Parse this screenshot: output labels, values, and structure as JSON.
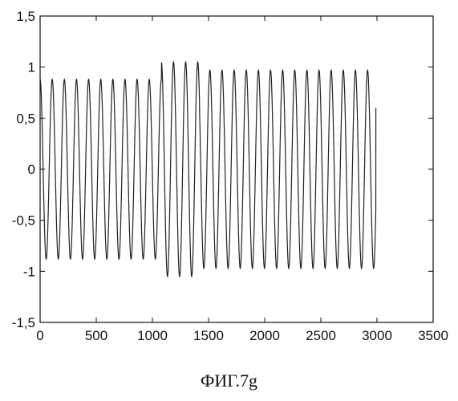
{
  "caption": "ФИГ.7g",
  "chart_data": {
    "type": "line",
    "title": "",
    "xlabel": "",
    "ylabel": "",
    "xlim": [
      0,
      3500
    ],
    "ylim": [
      -1.5,
      1.5
    ],
    "x_ticks": [
      0,
      500,
      1000,
      1500,
      2000,
      2500,
      3000,
      3500
    ],
    "x_tick_labels": [
      "0",
      "500",
      "1000",
      "1500",
      "2000",
      "2500",
      "3000",
      "3500"
    ],
    "y_ticks": [
      1.5,
      1,
      0.5,
      0,
      -0.5,
      -1,
      -1.5
    ],
    "y_tick_labels": [
      "1,5",
      "1",
      "0,5",
      "0",
      "-0,5",
      "-1",
      "-1,5"
    ],
    "grid": false,
    "line_color": "#222222",
    "series": [
      {
        "segments": [
          {
            "x_start": 0,
            "x_end": 1080,
            "amplitude": 0.88,
            "period": 108,
            "phase": 1.57
          },
          {
            "x_start": 1080,
            "x_end": 1420,
            "amplitude": 1.05,
            "period": 108,
            "phase": 1.57
          },
          {
            "x_start": 1420,
            "x_end": 2990,
            "amplitude": 0.97,
            "period": 108,
            "phase": 1.57
          }
        ],
        "end_value": 0.6
      }
    ]
  }
}
